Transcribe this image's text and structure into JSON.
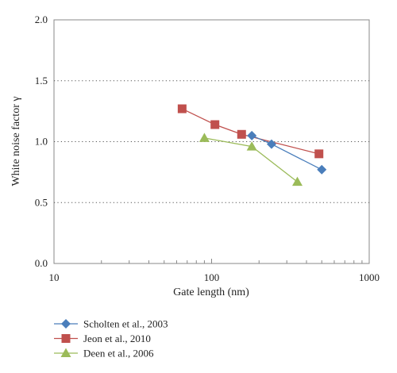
{
  "chart_data": {
    "type": "line",
    "xlabel": "Gate length (nm)",
    "ylabel": "White noise factor γ",
    "x_scale": "log",
    "xlim": [
      10,
      1000
    ],
    "ylim": [
      0.0,
      2.0
    ],
    "x_ticks": [
      10,
      100,
      1000
    ],
    "x_tick_labels": [
      "10",
      "100",
      "1000"
    ],
    "y_ticks": [
      0.0,
      0.5,
      1.0,
      1.5,
      2.0
    ],
    "y_tick_labels": [
      "0.0",
      "0.5",
      "1.0",
      "1.5",
      "2.0"
    ],
    "grid": "horizontal dotted",
    "legend_position": "below",
    "series": [
      {
        "name": "Scholten et al., 2003",
        "color": "#4a7ebb",
        "marker": "diamond",
        "points": [
          [
            180,
            1.05
          ],
          [
            240,
            0.98
          ],
          [
            500,
            0.77
          ]
        ]
      },
      {
        "name": "Jeon et al., 2010",
        "color": "#c0504d",
        "marker": "square",
        "points": [
          [
            65,
            1.27
          ],
          [
            105,
            1.14
          ],
          [
            155,
            1.06
          ],
          [
            480,
            0.9
          ]
        ]
      },
      {
        "name": "Deen et al., 2006",
        "color": "#9bbb59",
        "marker": "triangle",
        "points": [
          [
            90,
            1.03
          ],
          [
            180,
            0.96
          ],
          [
            350,
            0.67
          ]
        ]
      }
    ]
  }
}
